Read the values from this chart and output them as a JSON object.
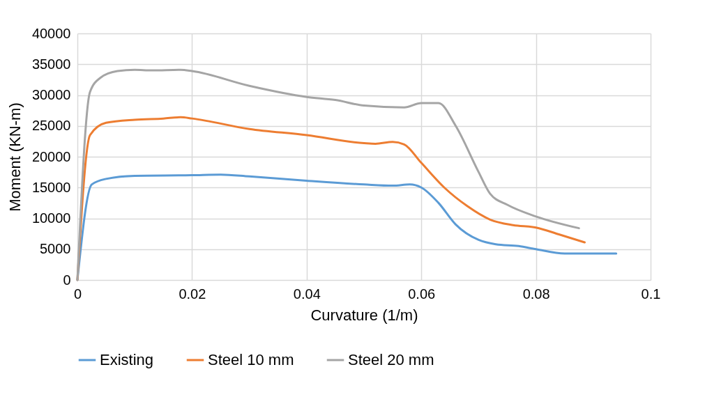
{
  "chart_data": {
    "type": "line",
    "xlabel": "Curvature (1/m)",
    "ylabel": "Moment (KN-m)",
    "xlim": [
      0,
      0.1
    ],
    "xticks": [
      0,
      0.02,
      0.04,
      0.06,
      0.08,
      0.1
    ],
    "ylim": [
      0,
      40000
    ],
    "yticks": [
      0,
      5000,
      10000,
      15000,
      20000,
      25000,
      30000,
      35000,
      40000
    ],
    "grid": true,
    "legend": "bottom",
    "marker": "none",
    "line_style": "solid",
    "series": [
      {
        "name": "Existing",
        "color": "#5b9bd5",
        "x": [
          0,
          0.0025,
          0.005,
          0.01,
          0.02,
          0.025,
          0.03,
          0.04,
          0.05,
          0.055,
          0.058,
          0.06,
          0.063,
          0.066,
          0.07,
          0.073,
          0.077,
          0.08,
          0.085,
          0.094
        ],
        "values": [
          0,
          15500,
          16400,
          16900,
          17000,
          17100,
          16800,
          16100,
          15500,
          15300,
          15500,
          15000,
          12500,
          9000,
          6500,
          5800,
          5500,
          5000,
          4300,
          4300
        ]
      },
      {
        "name": "Steel 10 mm",
        "color": "#ed7d31",
        "x": [
          0,
          0.0022,
          0.005,
          0.01,
          0.015,
          0.018,
          0.02,
          0.03,
          0.04,
          0.05,
          0.052,
          0.055,
          0.057,
          0.06,
          0.064,
          0.068,
          0.072,
          0.076,
          0.08,
          0.084,
          0.0885
        ],
        "values": [
          0,
          23500,
          25500,
          26000,
          26200,
          26400,
          26200,
          24500,
          23500,
          22200,
          22100,
          22400,
          22000,
          19000,
          15000,
          12000,
          9800,
          8900,
          8500,
          7400,
          6100
        ]
      },
      {
        "name": "Steel 20 mm",
        "color": "#a5a5a5",
        "x": [
          0,
          0.0022,
          0.004,
          0.007,
          0.01,
          0.013,
          0.018,
          0.02,
          0.03,
          0.04,
          0.045,
          0.05,
          0.057,
          0.06,
          0.063,
          0.066,
          0.07,
          0.072,
          0.075,
          0.08,
          0.0875
        ],
        "values": [
          0,
          30500,
          32800,
          33900,
          34100,
          34000,
          34100,
          33900,
          31500,
          29700,
          29200,
          28300,
          28000,
          28700,
          28700,
          25000,
          17500,
          14000,
          12200,
          10300,
          8400
        ]
      }
    ]
  }
}
